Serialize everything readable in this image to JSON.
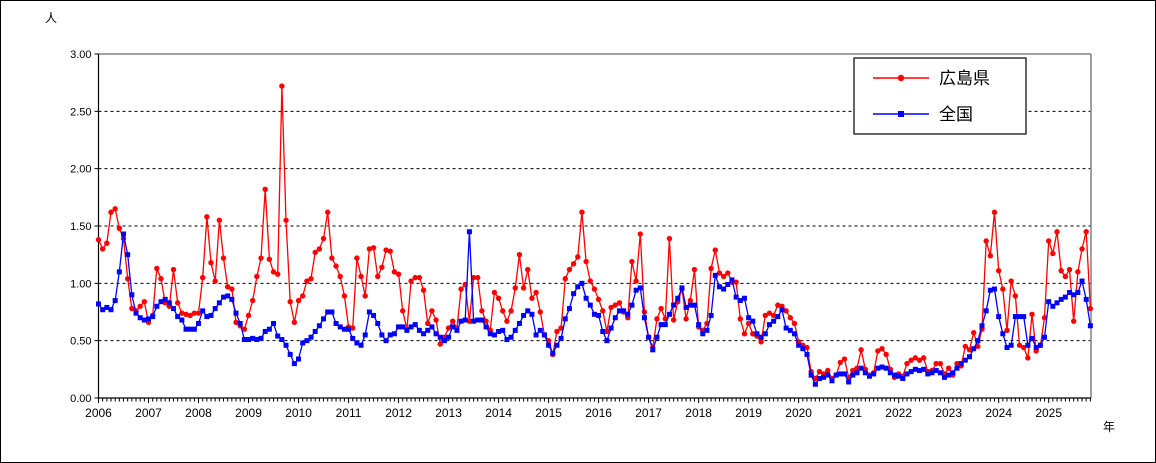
{
  "chart_data": {
    "type": "line",
    "title": "",
    "ylabel_unit": "人",
    "xlabel_unit": "年",
    "grid": "dashed horizontal lines at each 0.50 step",
    "legend_position": "top-right",
    "y_axis": {
      "min": 0.0,
      "max": 3.0,
      "step": 0.5,
      "tick_labels": [
        "0.00",
        "0.50",
        "1.00",
        "1.50",
        "2.00",
        "2.50",
        "3.00"
      ]
    },
    "x_axis": {
      "start": "2006-01",
      "end": "2025-11",
      "tick_unit": "month",
      "year_labels": [
        "2006",
        "2007",
        "2008",
        "2009",
        "2010",
        "2011",
        "2012",
        "2013",
        "2014",
        "2015",
        "2016",
        "2017",
        "2018",
        "2019",
        "2020",
        "2021",
        "2022",
        "2023",
        "2024",
        "2025"
      ]
    },
    "series": [
      {
        "name": "広島県",
        "color": "#ff0000",
        "marker": "circle",
        "values": [
          1.38,
          1.3,
          1.35,
          1.62,
          1.65,
          1.48,
          1.39,
          1.04,
          0.78,
          0.76,
          0.8,
          0.84,
          0.66,
          0.72,
          1.13,
          1.04,
          0.83,
          0.8,
          1.12,
          0.83,
          0.74,
          0.73,
          0.72,
          0.74,
          0.74,
          1.05,
          1.58,
          1.18,
          1.02,
          1.55,
          1.22,
          0.97,
          0.95,
          0.66,
          0.63,
          0.6,
          0.72,
          0.85,
          1.06,
          1.22,
          1.82,
          1.21,
          1.1,
          1.08,
          2.72,
          1.55,
          0.84,
          0.66,
          0.85,
          0.89,
          1.02,
          1.04,
          1.27,
          1.3,
          1.39,
          1.62,
          1.22,
          1.15,
          1.06,
          0.89,
          0.62,
          0.61,
          1.22,
          1.06,
          0.89,
          1.3,
          1.31,
          1.06,
          1.14,
          1.29,
          1.28,
          1.1,
          1.08,
          0.76,
          0.6,
          1.02,
          1.05,
          1.05,
          0.94,
          0.65,
          0.76,
          0.68,
          0.47,
          0.53,
          0.61,
          0.67,
          0.61,
          0.95,
          0.99,
          0.67,
          1.05,
          1.05,
          0.76,
          0.67,
          0.59,
          0.92,
          0.87,
          0.76,
          0.67,
          0.76,
          0.96,
          1.25,
          0.96,
          1.12,
          0.87,
          0.92,
          0.75,
          0.55,
          0.5,
          0.38,
          0.58,
          0.61,
          1.04,
          1.12,
          1.17,
          1.23,
          1.62,
          1.19,
          1.02,
          0.95,
          0.86,
          0.76,
          0.58,
          0.79,
          0.81,
          0.83,
          0.75,
          0.7,
          1.19,
          1.02,
          1.43,
          0.75,
          0.53,
          0.44,
          0.69,
          0.78,
          0.69,
          1.39,
          0.68,
          0.84,
          0.95,
          0.69,
          0.85,
          1.12,
          0.62,
          0.59,
          0.65,
          1.13,
          1.29,
          1.09,
          1.06,
          1.09,
          1.01,
          1.01,
          0.69,
          0.56,
          0.65,
          0.56,
          0.54,
          0.49,
          0.72,
          0.74,
          0.72,
          0.81,
          0.8,
          0.76,
          0.7,
          0.65,
          0.49,
          0.46,
          0.44,
          0.23,
          0.17,
          0.23,
          0.21,
          0.24,
          0.17,
          0.2,
          0.31,
          0.34,
          0.18,
          0.24,
          0.26,
          0.42,
          0.25,
          0.2,
          0.22,
          0.41,
          0.43,
          0.38,
          0.25,
          0.18,
          0.21,
          0.19,
          0.3,
          0.33,
          0.35,
          0.33,
          0.35,
          0.23,
          0.24,
          0.3,
          0.3,
          0.21,
          0.26,
          0.2,
          0.3,
          0.28,
          0.45,
          0.42,
          0.57,
          0.45,
          0.6,
          1.37,
          1.24,
          1.62,
          1.11,
          0.95,
          0.59,
          1.02,
          0.89,
          0.46,
          0.44,
          0.35,
          0.73,
          0.41,
          0.46,
          0.7,
          1.37,
          1.26,
          1.45,
          1.11,
          1.06,
          1.12,
          0.67,
          1.1,
          1.3,
          1.45,
          0.78
        ]
      },
      {
        "name": "全国",
        "color": "#0000ff",
        "marker": "square",
        "values": [
          0.82,
          0.77,
          0.79,
          0.77,
          0.85,
          1.1,
          1.43,
          1.25,
          0.9,
          0.74,
          0.7,
          0.68,
          0.69,
          0.71,
          0.8,
          0.84,
          0.86,
          0.83,
          0.78,
          0.71,
          0.68,
          0.6,
          0.6,
          0.6,
          0.65,
          0.76,
          0.71,
          0.72,
          0.78,
          0.83,
          0.88,
          0.89,
          0.86,
          0.74,
          0.65,
          0.51,
          0.51,
          0.52,
          0.51,
          0.52,
          0.58,
          0.6,
          0.65,
          0.54,
          0.51,
          0.46,
          0.38,
          0.3,
          0.34,
          0.48,
          0.5,
          0.53,
          0.58,
          0.63,
          0.69,
          0.75,
          0.75,
          0.65,
          0.62,
          0.6,
          0.6,
          0.52,
          0.48,
          0.46,
          0.55,
          0.75,
          0.72,
          0.65,
          0.55,
          0.5,
          0.55,
          0.56,
          0.62,
          0.62,
          0.59,
          0.62,
          0.64,
          0.59,
          0.56,
          0.59,
          0.62,
          0.56,
          0.53,
          0.5,
          0.53,
          0.62,
          0.59,
          0.67,
          0.68,
          1.45,
          0.67,
          0.68,
          0.68,
          0.62,
          0.56,
          0.55,
          0.58,
          0.59,
          0.51,
          0.53,
          0.59,
          0.65,
          0.72,
          0.76,
          0.73,
          0.55,
          0.59,
          0.55,
          0.46,
          0.39,
          0.46,
          0.52,
          0.69,
          0.78,
          0.91,
          0.97,
          1.0,
          0.87,
          0.81,
          0.73,
          0.72,
          0.58,
          0.5,
          0.61,
          0.7,
          0.76,
          0.76,
          0.73,
          0.81,
          0.94,
          0.96,
          0.7,
          0.53,
          0.42,
          0.53,
          0.64,
          0.64,
          0.73,
          0.81,
          0.87,
          0.96,
          0.79,
          0.81,
          0.81,
          0.64,
          0.56,
          0.59,
          0.72,
          1.07,
          0.97,
          0.95,
          0.99,
          1.03,
          0.88,
          0.85,
          0.87,
          0.7,
          0.67,
          0.56,
          0.53,
          0.56,
          0.64,
          0.67,
          0.71,
          0.77,
          0.61,
          0.59,
          0.56,
          0.46,
          0.43,
          0.38,
          0.2,
          0.12,
          0.17,
          0.18,
          0.2,
          0.15,
          0.2,
          0.21,
          0.21,
          0.14,
          0.2,
          0.22,
          0.26,
          0.22,
          0.19,
          0.21,
          0.26,
          0.27,
          0.26,
          0.22,
          0.2,
          0.19,
          0.17,
          0.21,
          0.23,
          0.25,
          0.24,
          0.25,
          0.21,
          0.22,
          0.24,
          0.22,
          0.18,
          0.2,
          0.22,
          0.26,
          0.3,
          0.33,
          0.36,
          0.43,
          0.5,
          0.63,
          0.76,
          0.94,
          0.95,
          0.71,
          0.56,
          0.44,
          0.46,
          0.71,
          0.71,
          0.71,
          0.46,
          0.52,
          0.44,
          0.46,
          0.53,
          0.84,
          0.8,
          0.83,
          0.86,
          0.88,
          0.92,
          0.9,
          0.92,
          1.02,
          0.86,
          0.63
        ]
      }
    ],
    "colors": {
      "hiroshima": "#ff0000",
      "national": "#0000ff",
      "plot_border": "#808080",
      "axis": "#000000",
      "grid": "#000000"
    }
  }
}
